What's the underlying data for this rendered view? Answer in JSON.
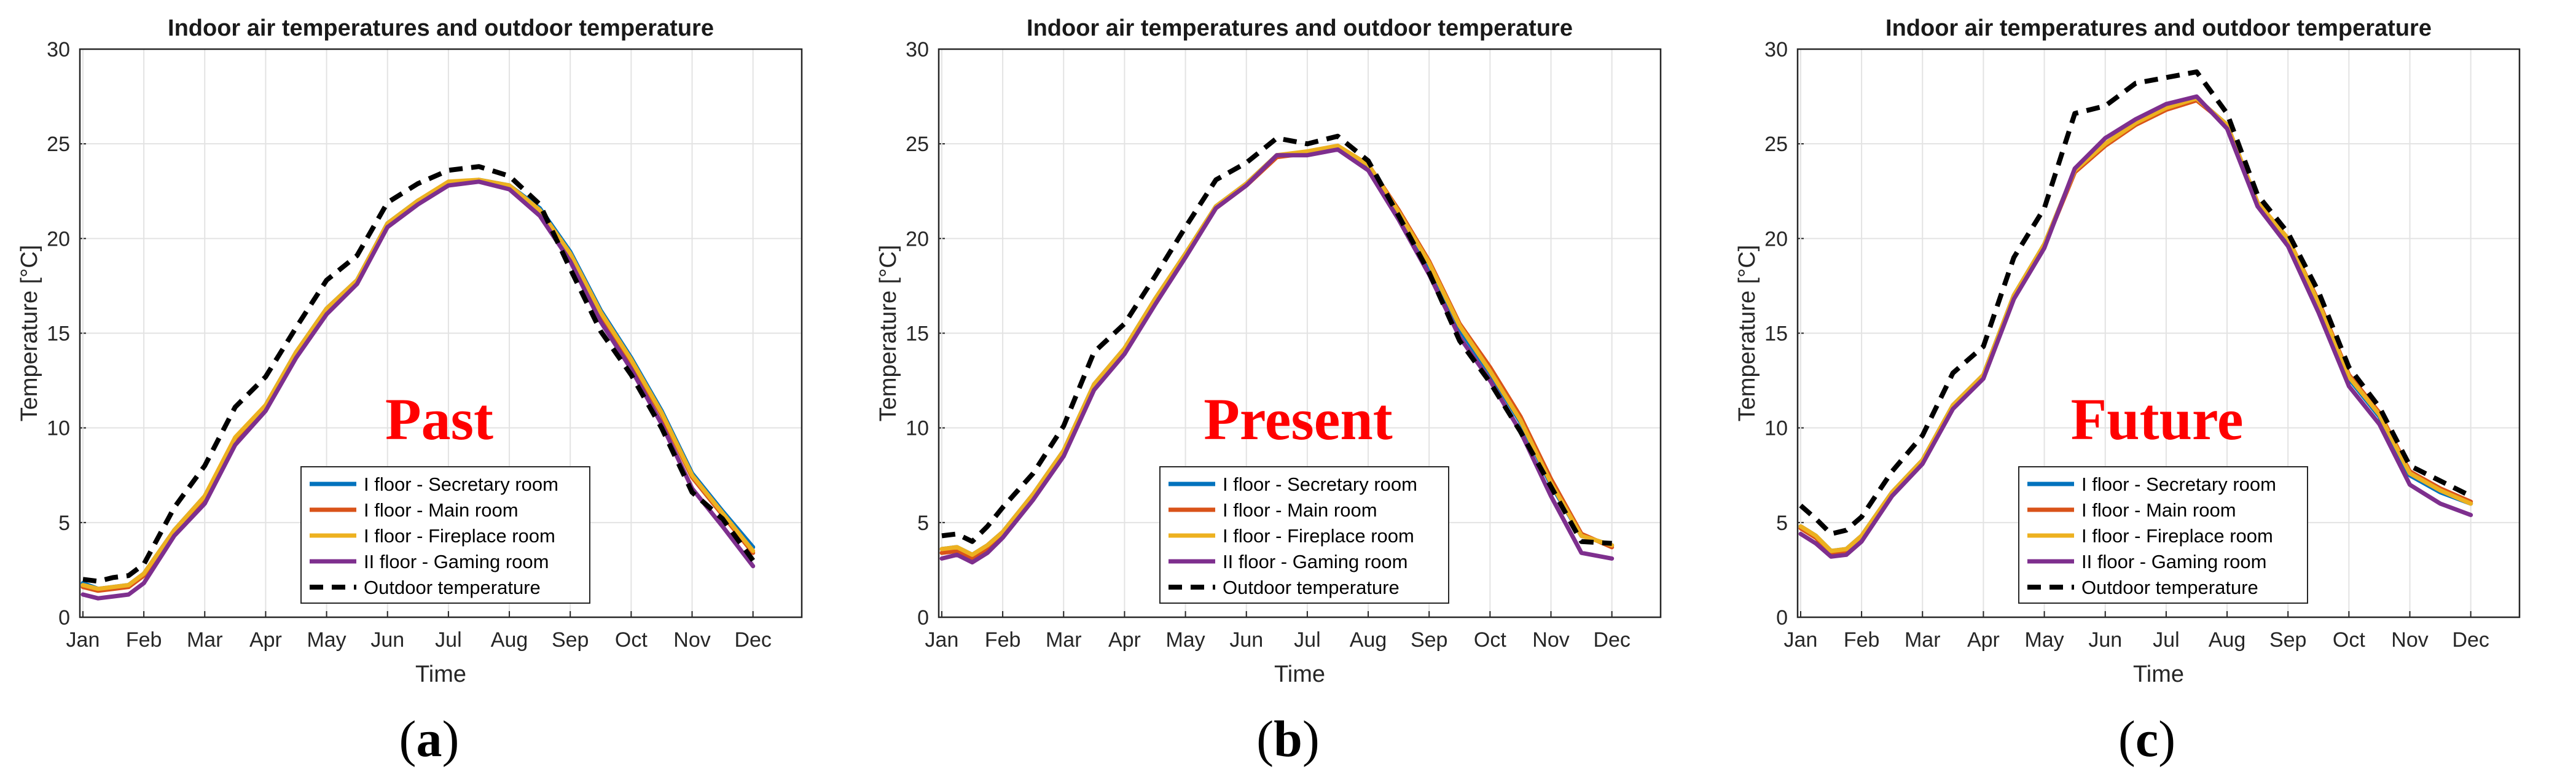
{
  "chart_data": [
    {
      "type": "line",
      "panel_label": "a",
      "overlay_label": "Past",
      "title": "Indoor air temperatures and outdoor temperature",
      "xlabel": "Time",
      "ylabel": "Temperature [°C]",
      "ylim": [
        0,
        30
      ],
      "yticks": [
        "0",
        "5",
        "10",
        "15",
        "20",
        "25",
        "30"
      ],
      "xticks": [
        "Jan",
        "Feb",
        "Mar",
        "Apr",
        "May",
        "Jun",
        "Jul",
        "Aug",
        "Sep",
        "Oct",
        "Nov",
        "Dec"
      ],
      "grid": true,
      "legend": "lower-center",
      "x": [
        0,
        0.25,
        0.5,
        0.75,
        1,
        1.5,
        2,
        2.5,
        3,
        3.5,
        4,
        4.5,
        5,
        5.5,
        6,
        6.5,
        7,
        7.5,
        8,
        8.5,
        9,
        9.5,
        10,
        10.5,
        11
      ],
      "series": [
        {
          "name": "I floor - Secretary room",
          "color": "#0072BD",
          "dash": "solid",
          "values": [
            1.8,
            1.5,
            1.6,
            1.7,
            2.3,
            4.6,
            6.4,
            9.4,
            11.2,
            14.0,
            16.3,
            17.8,
            20.8,
            22.0,
            22.9,
            23.1,
            22.8,
            21.6,
            19.3,
            16.2,
            13.7,
            10.9,
            7.6,
            5.6,
            3.7
          ]
        },
        {
          "name": "I floor - Main room",
          "color": "#D95319",
          "dash": "solid",
          "values": [
            1.6,
            1.4,
            1.5,
            1.6,
            2.2,
            4.5,
            6.3,
            9.3,
            11.1,
            13.9,
            16.2,
            17.7,
            20.7,
            21.9,
            22.9,
            23.0,
            22.7,
            21.4,
            19.1,
            16.0,
            13.5,
            10.7,
            7.4,
            5.4,
            3.4
          ]
        },
        {
          "name": "I floor - Fireplace room",
          "color": "#EDB120",
          "dash": "solid",
          "values": [
            1.7,
            1.5,
            1.6,
            1.7,
            2.3,
            4.6,
            6.4,
            9.5,
            11.2,
            14.0,
            16.3,
            17.8,
            20.8,
            22.0,
            23.0,
            23.1,
            22.8,
            21.5,
            19.2,
            16.1,
            13.6,
            10.8,
            7.5,
            5.5,
            3.5
          ]
        },
        {
          "name": "II floor - Gaming room",
          "color": "#7E2F8E",
          "dash": "solid",
          "values": [
            1.2,
            1.0,
            1.1,
            1.2,
            1.8,
            4.3,
            6.0,
            9.1,
            10.9,
            13.7,
            16.0,
            17.6,
            20.6,
            21.8,
            22.8,
            23.0,
            22.6,
            21.2,
            18.8,
            15.6,
            13.1,
            10.2,
            6.8,
            4.8,
            2.7
          ]
        },
        {
          "name": "Outdoor temperature",
          "color": "#000000",
          "dash": "dashed",
          "values": [
            2.0,
            1.9,
            2.1,
            2.2,
            2.8,
            5.8,
            8.0,
            11.1,
            12.7,
            15.3,
            17.8,
            19.1,
            21.9,
            22.9,
            23.6,
            23.8,
            23.3,
            21.8,
            18.4,
            15.1,
            12.8,
            10.0,
            6.6,
            5.2,
            3.0
          ]
        }
      ]
    },
    {
      "type": "line",
      "panel_label": "b",
      "overlay_label": "Present",
      "title": "Indoor air temperatures and outdoor temperature",
      "xlabel": "Time",
      "ylabel": "Temperature [°C]",
      "ylim": [
        0,
        30
      ],
      "yticks": [
        "0",
        "5",
        "10",
        "15",
        "20",
        "25",
        "30"
      ],
      "xticks": [
        "Jan",
        "Feb",
        "Mar",
        "Apr",
        "May",
        "Jun",
        "Jul",
        "Aug",
        "Sep",
        "Oct",
        "Nov",
        "Dec"
      ],
      "grid": true,
      "legend": "lower-center",
      "x": [
        0,
        0.25,
        0.5,
        0.75,
        1,
        1.5,
        2,
        2.5,
        3,
        3.5,
        4,
        4.5,
        5,
        5.5,
        6,
        6.5,
        7,
        7.5,
        8,
        8.5,
        9,
        9.5,
        10,
        10.5,
        11
      ],
      "series": [
        {
          "name": "I floor - Secretary room",
          "color": "#0072BD",
          "dash": "solid",
          "values": [
            3.6,
            3.7,
            3.3,
            3.8,
            4.5,
            6.5,
            8.8,
            12.3,
            14.2,
            16.8,
            19.2,
            21.7,
            22.9,
            24.4,
            24.5,
            24.8,
            23.8,
            21.3,
            18.5,
            15.2,
            12.9,
            10.3,
            7.0,
            4.3,
            3.8
          ]
        },
        {
          "name": "I floor - Main room",
          "color": "#D95319",
          "dash": "solid",
          "values": [
            3.4,
            3.5,
            3.1,
            3.6,
            4.3,
            6.3,
            8.6,
            12.1,
            14.0,
            16.6,
            19.1,
            21.6,
            22.8,
            24.3,
            24.5,
            24.8,
            23.9,
            21.5,
            18.8,
            15.5,
            13.2,
            10.6,
            7.3,
            4.4,
            3.7
          ]
        },
        {
          "name": "I floor - Fireplace room",
          "color": "#EDB120",
          "dash": "solid",
          "values": [
            3.6,
            3.7,
            3.3,
            3.8,
            4.5,
            6.5,
            8.8,
            12.3,
            14.2,
            16.8,
            19.2,
            21.7,
            22.9,
            24.4,
            24.6,
            24.9,
            23.9,
            21.4,
            18.7,
            15.4,
            13.0,
            10.4,
            7.1,
            4.3,
            3.8
          ]
        },
        {
          "name": "II floor - Gaming room",
          "color": "#7E2F8E",
          "dash": "solid",
          "values": [
            3.1,
            3.3,
            2.9,
            3.4,
            4.2,
            6.2,
            8.5,
            12.0,
            13.9,
            16.5,
            19.0,
            21.6,
            22.8,
            24.4,
            24.4,
            24.7,
            23.6,
            21.0,
            18.1,
            14.8,
            12.5,
            9.8,
            6.4,
            3.4,
            3.1
          ]
        },
        {
          "name": "Outdoor temperature",
          "color": "#000000",
          "dash": "dashed",
          "values": [
            4.3,
            4.4,
            4.0,
            4.8,
            5.8,
            7.6,
            10.1,
            14.0,
            15.5,
            18.0,
            20.6,
            23.1,
            24.0,
            25.3,
            25.0,
            25.4,
            24.1,
            21.2,
            18.2,
            14.6,
            12.4,
            9.8,
            6.9,
            4.0,
            3.9
          ]
        }
      ]
    },
    {
      "type": "line",
      "panel_label": "c",
      "overlay_label": "Future",
      "title": "Indoor air temperatures and outdoor temperature",
      "xlabel": "Time",
      "ylabel": "Temperature [°C]",
      "ylim": [
        0,
        30
      ],
      "yticks": [
        "0",
        "5",
        "10",
        "15",
        "20",
        "25",
        "30"
      ],
      "xticks": [
        "Jan",
        "Feb",
        "Mar",
        "Apr",
        "May",
        "Jun",
        "Jul",
        "Aug",
        "Sep",
        "Oct",
        "Nov",
        "Dec"
      ],
      "grid": true,
      "legend": "lower-center",
      "x": [
        0,
        0.25,
        0.5,
        0.75,
        1,
        1.5,
        2,
        2.5,
        3,
        3.5,
        4,
        4.5,
        5,
        5.5,
        6,
        6.5,
        7,
        7.5,
        8,
        8.5,
        9,
        9.5,
        10,
        10.5,
        11
      ],
      "series": [
        {
          "name": "I floor - Secretary room",
          "color": "#0072BD",
          "dash": "solid",
          "values": [
            4.8,
            4.3,
            3.5,
            3.6,
            4.3,
            6.6,
            8.3,
            11.2,
            12.8,
            17.0,
            19.7,
            23.6,
            25.0,
            26.1,
            26.9,
            27.4,
            26.0,
            21.9,
            19.9,
            16.5,
            12.6,
            10.6,
            7.5,
            6.6,
            6.0
          ]
        },
        {
          "name": "I floor - Main room",
          "color": "#D95319",
          "dash": "solid",
          "values": [
            4.7,
            4.2,
            3.4,
            3.5,
            4.2,
            6.5,
            8.2,
            11.1,
            12.7,
            16.9,
            19.6,
            23.5,
            24.9,
            26.0,
            26.8,
            27.3,
            26.0,
            21.9,
            20.0,
            16.7,
            12.8,
            10.8,
            7.7,
            6.8,
            6.1
          ]
        },
        {
          "name": "I floor - Fireplace room",
          "color": "#EDB120",
          "dash": "solid",
          "values": [
            4.8,
            4.3,
            3.5,
            3.6,
            4.3,
            6.6,
            8.3,
            11.2,
            12.8,
            17.0,
            19.7,
            23.6,
            25.0,
            26.1,
            26.9,
            27.4,
            26.0,
            21.9,
            20.0,
            16.6,
            12.7,
            10.7,
            7.6,
            6.7,
            6.0
          ]
        },
        {
          "name": "II floor - Gaming room",
          "color": "#7E2F8E",
          "dash": "solid",
          "values": [
            4.4,
            3.9,
            3.2,
            3.3,
            4.0,
            6.4,
            8.1,
            11.0,
            12.6,
            16.8,
            19.5,
            23.7,
            25.3,
            26.3,
            27.1,
            27.5,
            25.8,
            21.7,
            19.6,
            16.1,
            12.2,
            10.2,
            7.0,
            6.0,
            5.4
          ]
        },
        {
          "name": "Outdoor temperature",
          "color": "#000000",
          "dash": "dashed",
          "values": [
            5.9,
            5.2,
            4.4,
            4.6,
            5.3,
            7.7,
            9.6,
            12.9,
            14.3,
            19.0,
            21.6,
            26.6,
            27.0,
            28.2,
            28.5,
            28.8,
            26.6,
            22.3,
            20.3,
            17.2,
            13.2,
            11.1,
            8.0,
            7.2,
            6.4
          ]
        }
      ]
    }
  ]
}
